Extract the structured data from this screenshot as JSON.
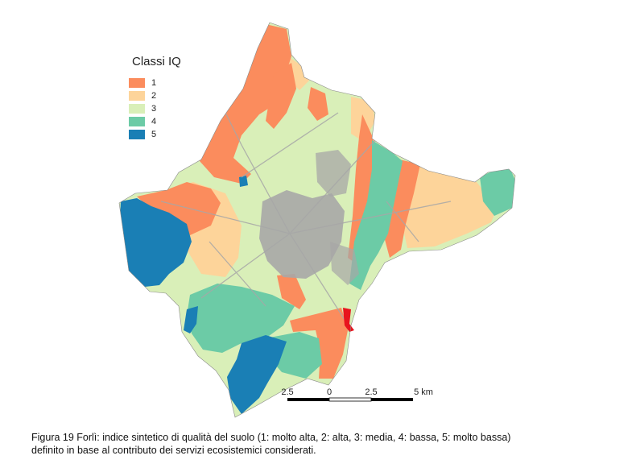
{
  "legend": {
    "title": "Classi IQ",
    "items": [
      {
        "label": "1",
        "color": "#fb8c5d"
      },
      {
        "label": "2",
        "color": "#fdd49a"
      },
      {
        "label": "3",
        "color": "#d9efb8"
      },
      {
        "label": "4",
        "color": "#6ccba6"
      },
      {
        "label": "5",
        "color": "#1a7fb5"
      }
    ]
  },
  "scale_bar": {
    "labels": [
      "2.5",
      "0",
      "2.5",
      "5 km"
    ]
  },
  "colors": {
    "urban": "#a7a7a7",
    "highlight": "#e8141e"
  },
  "caption": {
    "line1": "Figura 19 Forlì: indice sintetico di qualità del suolo (1: molto alta, 2: alta, 3: media, 4: bassa, 5: molto bassa)",
    "line2": "definito in base al contributo dei servizi ecosistemici considerati."
  }
}
